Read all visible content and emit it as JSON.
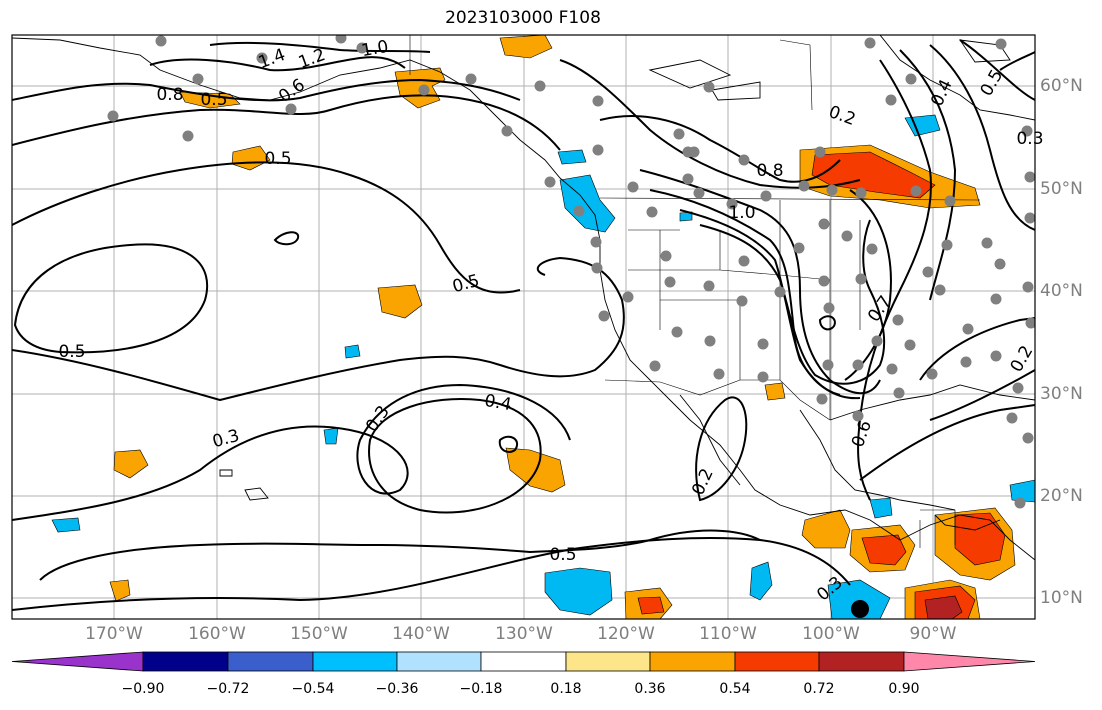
{
  "title": "2023103000 F108",
  "map": {
    "lon_range": [
      -180,
      -80
    ],
    "lat_range": [
      8,
      65
    ],
    "lon_ticks": [
      "170°W",
      "160°W",
      "150°W",
      "140°W",
      "130°W",
      "120°W",
      "110°W",
      "100°W",
      "90°W"
    ],
    "lat_ticks": [
      "60°N",
      "50°N",
      "40°N",
      "30°N",
      "20°N",
      "10°N"
    ],
    "grid": true,
    "contour_labels": [
      "1.4",
      "1.2",
      "1.0",
      "0.8",
      "0.6",
      "0.5",
      "0.5",
      "0.5",
      "0.5",
      "0.3",
      "0.3",
      "0.4",
      "0.5",
      "0.2",
      "0.3",
      "0.2",
      "0.8",
      "1.0",
      "0.7",
      "0.6",
      "0.2",
      "0.4",
      "0.5",
      "0.3"
    ],
    "fill_colors": {
      "positive_low": "#fde58a",
      "positive_mid": "#f9a400",
      "positive_high": "#f53b00",
      "negative_mid": "#00b9f2",
      "negative_low": "#b0e0f7"
    },
    "station_marker_color": "#808080"
  },
  "colorbar": {
    "ticks": [
      "−0.90",
      "−0.72",
      "−0.54",
      "−0.36",
      "−0.18",
      "0.18",
      "0.36",
      "0.54",
      "0.72",
      "0.90"
    ],
    "colors": [
      "#9933cc",
      "#00008b",
      "#3a5fcd",
      "#00bfff",
      "#b0e2ff",
      "#ffffff",
      "#fde68a",
      "#f9a400",
      "#f53b00",
      "#b22222",
      "#ff88aa"
    ]
  }
}
